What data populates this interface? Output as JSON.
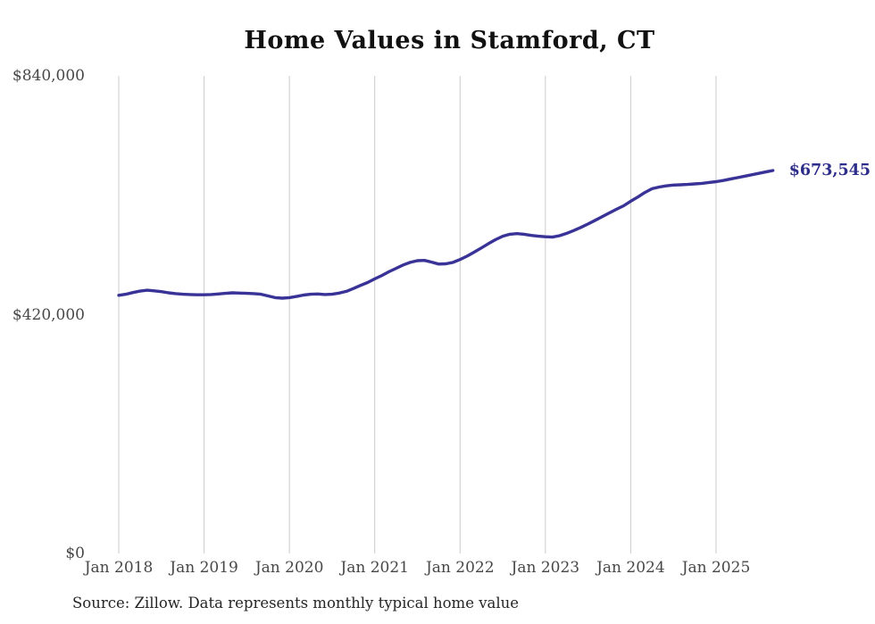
{
  "page": {
    "source_note": "Source: Zillow. Data represents monthly typical home value"
  },
  "chart_data": {
    "type": "line",
    "title": "Home Values in Stamford, CT",
    "series_name": "Monthly typical home value",
    "x_tick_labels": [
      "Jan 2018",
      "Jan 2019",
      "Jan 2020",
      "Jan 2021",
      "Jan 2022",
      "Jan 2023",
      "Jan 2024",
      "Jan 2025"
    ],
    "y_tick_labels": [
      "$840,000",
      "$420,000",
      "$0"
    ],
    "y_tick_values": [
      840000,
      420000,
      0
    ],
    "ylim": [
      0,
      840000
    ],
    "x_monthly_start": "2018-01",
    "x_monthly_end": "2025-09",
    "grid": "vertical-only",
    "legend": "none",
    "end_label": "$673,545",
    "final_value": 673545,
    "line_color": "#3a3397",
    "end_label_color": "#2d2d8a",
    "grid_color": "#cccccc",
    "values": [
      454000,
      456000,
      459000,
      461500,
      463000,
      462000,
      460500,
      458500,
      457000,
      456000,
      455500,
      455000,
      455000,
      455500,
      456500,
      457500,
      458500,
      458000,
      457500,
      457000,
      456000,
      453000,
      450000,
      449000,
      450000,
      452000,
      454500,
      456000,
      456500,
      455500,
      456000,
      458000,
      461000,
      466000,
      471500,
      476500,
      483000,
      489000,
      495500,
      501500,
      507500,
      512000,
      515000,
      515500,
      512500,
      509000,
      509500,
      512000,
      517000,
      523000,
      530000,
      537500,
      545000,
      552000,
      558000,
      561500,
      562500,
      561500,
      559500,
      558000,
      557000,
      556500,
      559000,
      563000,
      568000,
      573500,
      579500,
      586000,
      592500,
      599000,
      605500,
      611500,
      619500,
      627000,
      635000,
      641500,
      644500,
      646500,
      648000,
      648500,
      649000,
      650000,
      651000,
      652500,
      654000,
      656000,
      658500,
      661000,
      663500,
      666000,
      668500,
      671000,
      673545
    ]
  }
}
